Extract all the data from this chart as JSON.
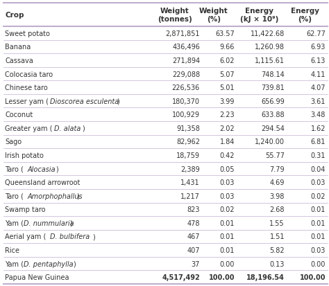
{
  "headers": [
    "Crop",
    "Weight\n(tonnes)",
    "Weight\n(%)",
    "Energy\n(kJ × 10⁹)",
    "Energy\n(%)"
  ],
  "rows": [
    [
      "Sweet potato",
      "2,871,851",
      "63.57",
      "11,422.68",
      "62.77"
    ],
    [
      "Banana",
      "436,496",
      "9.66",
      "1,260.98",
      "6.93"
    ],
    [
      "Cassava",
      "271,894",
      "6.02",
      "1,115.61",
      "6.13"
    ],
    [
      "Colocasia taro",
      "229,088",
      "5.07",
      "748.14",
      "4.11"
    ],
    [
      "Chinese taro",
      "226,536",
      "5.01",
      "739.81",
      "4.07"
    ],
    [
      "Lesser yam (Dioscorea esculenta)",
      "180,370",
      "3.99",
      "656.99",
      "3.61"
    ],
    [
      "Coconut",
      "100,929",
      "2.23",
      "633.88",
      "3.48"
    ],
    [
      "Greater yam (D. alata)",
      "91,358",
      "2.02",
      "294.54",
      "1.62"
    ],
    [
      "Sago",
      "82,962",
      "1.84",
      "1,240.00",
      "6.81"
    ],
    [
      "Irish potato",
      "18,759",
      "0.42",
      "55.77",
      "0.31"
    ],
    [
      "Taro (Alocasia)",
      "2,389",
      "0.05",
      "7.79",
      "0.04"
    ],
    [
      "Queensland arrowroot",
      "1,431",
      "0.03",
      "4.69",
      "0.03"
    ],
    [
      "Taro (Amorphophallus)",
      "1,217",
      "0.03",
      "3.98",
      "0.02"
    ],
    [
      "Swamp taro",
      "823",
      "0.02",
      "2.68",
      "0.01"
    ],
    [
      "Yam (D. nummularia)",
      "478",
      "0.01",
      "1.55",
      "0.01"
    ],
    [
      "Aerial yam (D. bulbifera)",
      "467",
      "0.01",
      "1.51",
      "0.01"
    ],
    [
      "Rice",
      "407",
      "0.01",
      "5.82",
      "0.03"
    ],
    [
      "Yam (D. pentaphylla)",
      "37",
      "0.00",
      "0.13",
      "0.00"
    ],
    [
      "Papua New Guinea",
      "4,517,492",
      "100.00",
      "18,196.54",
      "100.00"
    ]
  ],
  "italic_parts": {
    "Lesser yam (Dioscorea esculenta)": [
      "Lesser yam (",
      "Dioscorea esculenta",
      ")"
    ],
    "Greater yam (D. alata)": [
      "Greater yam (",
      "D. alata",
      ")"
    ],
    "Taro (Alocasia)": [
      "Taro (",
      "Alocasia",
      ")"
    ],
    "Taro (Amorphophallus)": [
      "Taro (",
      "Amorphophallus",
      ")"
    ],
    "Yam (D. nummularia)": [
      "Yam (",
      "D. nummularia",
      ")"
    ],
    "Aerial yam (D. bulbifera)": [
      "Aerial yam (",
      "D. bulbifera",
      ")"
    ],
    "Yam (D. pentaphylla)": [
      "Yam (",
      "D. pentaphylla",
      ")"
    ]
  },
  "separator_color": "#c0aed0",
  "text_color": "#333333",
  "fig_bg": "#ffffff",
  "font_size": 7.0,
  "header_font_size": 7.5
}
